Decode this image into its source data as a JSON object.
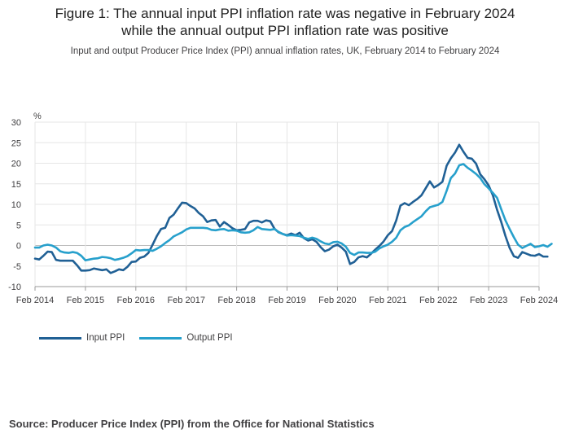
{
  "title_line1": "Figure 1: The annual input PPI inflation rate was negative in February 2024",
  "title_line2": "while the annual output PPI inflation rate was positive",
  "subtitle": "Input and output Producer Price Index (PPI) annual inflation rates, UK, February 2014 to February 2024",
  "source": "Source: Producer Price Index (PPI) from the Office for National Statistics",
  "colors": {
    "input": "#206095",
    "output": "#27a0cc",
    "grid": "#e6e6e6",
    "axis": "#414042"
  },
  "chart_data": {
    "type": "line",
    "ylabel": "%",
    "ylim": [
      -10,
      30
    ],
    "yticks": [
      -10,
      -5,
      0,
      5,
      10,
      15,
      20,
      25,
      30
    ],
    "xlim": [
      0,
      120
    ],
    "xticks": [
      {
        "label": "Feb 2014",
        "x": 0
      },
      {
        "label": "Feb 2015",
        "x": 12
      },
      {
        "label": "Feb 2016",
        "x": 24
      },
      {
        "label": "Feb 2017",
        "x": 36
      },
      {
        "label": "Feb 2018",
        "x": 48
      },
      {
        "label": "Feb 2019",
        "x": 60
      },
      {
        "label": "Feb 2020",
        "x": 72
      },
      {
        "label": "Feb 2021",
        "x": 84
      },
      {
        "label": "Feb 2022",
        "x": 96
      },
      {
        "label": "Feb 2023",
        "x": 108
      },
      {
        "label": "Feb 2024",
        "x": 120
      }
    ],
    "series": [
      {
        "name": "Input PPI",
        "color": "#206095",
        "values": [
          -3.2,
          -3.4,
          -2.5,
          -1.5,
          -1.6,
          -3.5,
          -3.7,
          -3.7,
          -3.7,
          -3.7,
          -4.8,
          -6.1,
          -6.1,
          -6.0,
          -5.6,
          -5.8,
          -6.0,
          -5.8,
          -6.7,
          -6.3,
          -5.8,
          -6.0,
          -5.2,
          -4.0,
          -3.9,
          -3.0,
          -2.7,
          -1.8,
          0.2,
          2.3,
          4.0,
          4.3,
          6.7,
          7.5,
          9.0,
          10.4,
          10.3,
          9.6,
          9.0,
          7.9,
          7.1,
          5.7,
          6.1,
          6.2,
          4.6,
          5.7,
          5.0,
          4.2,
          3.7,
          3.8,
          4.0,
          5.6,
          6.0,
          6.0,
          5.6,
          6.1,
          5.9,
          4.1,
          3.2,
          2.8,
          2.5,
          2.9,
          2.5,
          3.1,
          1.8,
          1.2,
          1.5,
          0.9,
          -0.4,
          -1.4,
          -1.0,
          -0.2,
          0.2,
          -0.5,
          -1.5,
          -4.5,
          -4.0,
          -2.9,
          -2.6,
          -2.9,
          -2.0,
          -1.0,
          -0.1,
          1.0,
          2.5,
          3.5,
          6.1,
          9.7,
          10.3,
          9.8,
          10.6,
          11.3,
          12.2,
          13.9,
          15.6,
          14.1,
          14.7,
          15.5,
          19.4,
          21.2,
          22.6,
          24.5,
          22.8,
          21.3,
          21.1,
          19.9,
          17.3,
          16.1,
          14.6,
          12.2,
          8.7,
          5.7,
          2.3,
          -0.6,
          -2.6,
          -3.0,
          -1.6,
          -2.0,
          -2.4,
          -2.5,
          -2.1,
          -2.7,
          -2.7
        ]
      },
      {
        "name": "Output PPI",
        "color": "#27a0cc",
        "values": [
          -0.5,
          -0.5,
          0.0,
          0.2,
          0.0,
          -0.5,
          -1.4,
          -1.7,
          -1.8,
          -1.6,
          -1.8,
          -2.5,
          -3.6,
          -3.4,
          -3.2,
          -3.1,
          -2.8,
          -2.9,
          -3.1,
          -3.5,
          -3.3,
          -3.0,
          -2.6,
          -1.9,
          -1.1,
          -1.2,
          -1.1,
          -1.1,
          -1.3,
          -0.8,
          -0.2,
          0.6,
          1.3,
          2.2,
          2.7,
          3.2,
          3.9,
          4.3,
          4.3,
          4.3,
          4.3,
          4.2,
          3.8,
          3.7,
          3.9,
          4.0,
          3.6,
          3.7,
          3.6,
          3.2,
          3.1,
          3.2,
          3.7,
          4.5,
          4.0,
          3.9,
          3.8,
          4.0,
          3.3,
          2.8,
          2.4,
          2.5,
          2.4,
          2.3,
          1.9,
          1.6,
          1.9,
          1.6,
          1.0,
          0.5,
          0.3,
          0.8,
          0.9,
          0.5,
          -0.3,
          -1.8,
          -2.3,
          -1.7,
          -1.7,
          -1.8,
          -1.8,
          -1.5,
          -0.7,
          -0.2,
          0.2,
          0.9,
          1.9,
          3.7,
          4.5,
          4.9,
          5.7,
          6.4,
          7.1,
          8.3,
          9.3,
          9.6,
          9.9,
          10.6,
          13.3,
          16.4,
          17.5,
          19.5,
          19.8,
          18.9,
          18.2,
          17.4,
          16.4,
          14.9,
          13.9,
          12.8,
          11.6,
          8.8,
          6.1,
          4.0,
          2.0,
          0.2,
          -0.6,
          -0.1,
          0.4,
          -0.4,
          -0.2,
          0.1,
          -0.3,
          0.4
        ]
      }
    ],
    "legend": [
      {
        "label": "Input PPI",
        "color": "#206095"
      },
      {
        "label": "Output PPI",
        "color": "#27a0cc"
      }
    ]
  }
}
